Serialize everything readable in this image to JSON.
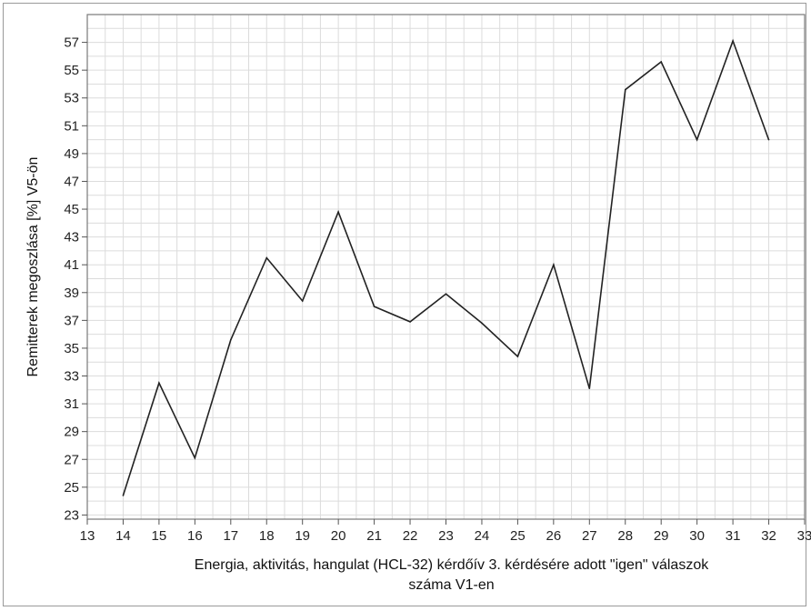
{
  "chart_data": {
    "type": "line",
    "xlabel_line1": "Energia, aktivitás, hangulat (HCL-32) kérdőív 3. kérdésére adott \"igen\" válaszok",
    "xlabel_line2": "száma V1-en",
    "ylabel": "Remitterek megoszlása [%] V5-ön",
    "xlim": [
      13,
      33
    ],
    "ylim": [
      22.7,
      59
    ],
    "x_ticks": [
      13,
      14,
      15,
      16,
      17,
      18,
      19,
      20,
      21,
      22,
      23,
      24,
      25,
      26,
      27,
      28,
      29,
      30,
      31,
      32,
      33
    ],
    "y_ticks": [
      23,
      25,
      27,
      29,
      31,
      33,
      35,
      37,
      39,
      41,
      43,
      45,
      47,
      49,
      51,
      53,
      55,
      57
    ],
    "grid": true,
    "series": [
      {
        "x": [
          14,
          15,
          16,
          17,
          18,
          19,
          20,
          21,
          22,
          23,
          24,
          25,
          26,
          27,
          28,
          29,
          30,
          31,
          32
        ],
        "values": [
          24.4,
          32.5,
          27.1,
          35.6,
          41.5,
          38.4,
          44.8,
          38.0,
          36.9,
          38.9,
          36.8,
          34.4,
          41.0,
          32.1,
          53.6,
          55.6,
          50.0,
          57.1,
          50.0
        ],
        "color": "#222222"
      }
    ]
  }
}
